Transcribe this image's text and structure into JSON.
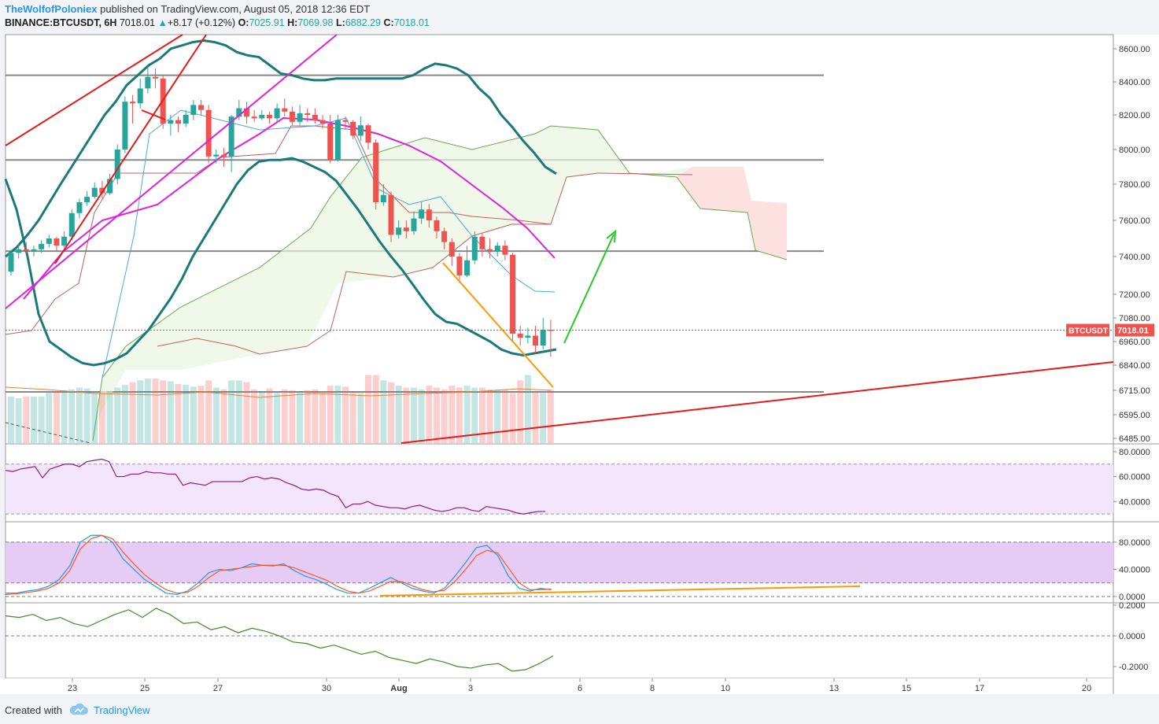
{
  "header": {
    "author": "TheWolfofPoloniex",
    "published_text": "published on TradingView.com, August 05, 2018 12:36 EDT",
    "symbol": "BINANCE:BTCUSDT, 6H",
    "last": "7018.01",
    "change_arrow": "▲",
    "change": "+8.17 (+0.12%)",
    "o_label": "O:",
    "o": "7025.91",
    "h_label": "H:",
    "h": "7069.98",
    "l_label": "L:",
    "l": "6882.29",
    "c_label": "C:",
    "c": "7018.01"
  },
  "footer": {
    "created_with": "Created with",
    "brand": "TradingView",
    "logo_icon": "tradingview-cloud-icon"
  },
  "colors": {
    "up": "#26a69a",
    "down": "#ef5350",
    "bb": "#1b7a78",
    "ma": "#e020e0",
    "trend_red": "#e41b1b",
    "orange": "#ff9800",
    "green_arrow": "#22cc22",
    "price_tag": "#ef5350",
    "rsi_line": "#8b1a8b",
    "stoch_k": "#2196f3",
    "stoch_d": "#ff5722",
    "osc_line": "#3f8c1f",
    "cloud_green": "#8bc34a",
    "cloud_red": "#f7a8a8"
  },
  "chart_data": [
    {
      "type": "candlestick",
      "title": "BINANCE:BTCUSDT, 6H",
      "x_axis_labels": [
        "23",
        "25",
        "27",
        "30",
        "Aug",
        "3",
        "6",
        "8",
        "10",
        "13",
        "15",
        "17",
        "20"
      ],
      "y_ticks": [
        "8600.00",
        "8400.00",
        "8200.00",
        "8000.00",
        "7800.00",
        "7600.00",
        "7400.00",
        "7200.00",
        "7080.00",
        "6960.00",
        "6840.00",
        "6715.00",
        "6595.00",
        "6485.00"
      ],
      "price_tag": {
        "symbol": "BTCUSDT",
        "value": "7018.01"
      },
      "candles": [
        [
          7320,
          7420,
          7300,
          7430
        ],
        [
          7420,
          7440,
          7390,
          7470
        ],
        [
          7440,
          7430,
          7420,
          7480
        ],
        [
          7430,
          7440,
          7400,
          7460
        ],
        [
          7440,
          7470,
          7420,
          7490
        ],
        [
          7470,
          7500,
          7450,
          7520
        ],
        [
          7500,
          7460,
          7430,
          7510
        ],
        [
          7460,
          7510,
          7450,
          7540
        ],
        [
          7510,
          7640,
          7490,
          7660
        ],
        [
          7640,
          7700,
          7610,
          7720
        ],
        [
          7700,
          7730,
          7680,
          7760
        ],
        [
          7730,
          7780,
          7720,
          7810
        ],
        [
          7780,
          7750,
          7720,
          7820
        ],
        [
          7750,
          7830,
          7740,
          7860
        ],
        [
          7830,
          8000,
          7800,
          8030
        ],
        [
          8000,
          8280,
          7980,
          8310
        ],
        [
          8280,
          8270,
          8150,
          8320
        ],
        [
          8270,
          8360,
          8240,
          8420
        ],
        [
          8360,
          8430,
          8330,
          8490
        ],
        [
          8430,
          8420,
          8360,
          8480
        ],
        [
          8420,
          8150,
          8120,
          8440
        ],
        [
          8150,
          8170,
          8080,
          8200
        ],
        [
          8170,
          8150,
          8100,
          8190
        ],
        [
          8150,
          8200,
          8130,
          8230
        ],
        [
          8200,
          8260,
          8170,
          8290
        ],
        [
          8260,
          8230,
          8200,
          8290
        ],
        [
          8230,
          7960,
          7920,
          8260
        ],
        [
          7960,
          7970,
          7920,
          8000
        ],
        [
          7970,
          7960,
          7900,
          8010
        ],
        [
          7960,
          8190,
          7870,
          8200
        ],
        [
          8190,
          8240,
          8170,
          8290
        ],
        [
          8240,
          8190,
          8150,
          8280
        ],
        [
          8190,
          8180,
          8160,
          8230
        ],
        [
          8180,
          8200,
          8170,
          8230
        ],
        [
          8200,
          8180,
          8150,
          8220
        ],
        [
          8180,
          8240,
          8160,
          8270
        ],
        [
          8240,
          8220,
          8190,
          8300
        ],
        [
          8220,
          8160,
          8140,
          8250
        ],
        [
          8160,
          8210,
          8140,
          8260
        ],
        [
          8210,
          8200,
          8160,
          8240
        ],
        [
          8200,
          8170,
          8150,
          8240
        ],
        [
          8170,
          8150,
          8120,
          8200
        ],
        [
          8150,
          7940,
          7920,
          8200
        ],
        [
          7940,
          8170,
          7930,
          8200
        ],
        [
          8170,
          8160,
          8120,
          8190
        ],
        [
          8160,
          8080,
          8060,
          8170
        ],
        [
          8080,
          8140,
          8050,
          8190
        ],
        [
          8140,
          8040,
          8000,
          8150
        ],
        [
          8040,
          7700,
          7660,
          8060
        ],
        [
          7700,
          7740,
          7680,
          7800
        ],
        [
          7740,
          7520,
          7480,
          7760
        ],
        [
          7520,
          7560,
          7500,
          7600
        ],
        [
          7560,
          7540,
          7500,
          7600
        ],
        [
          7540,
          7610,
          7520,
          7650
        ],
        [
          7610,
          7660,
          7580,
          7700
        ],
        [
          7660,
          7600,
          7560,
          7690
        ],
        [
          7600,
          7540,
          7500,
          7620
        ],
        [
          7540,
          7480,
          7440,
          7560
        ],
        [
          7480,
          7400,
          7350,
          7500
        ],
        [
          7400,
          7300,
          7260,
          7420
        ],
        [
          7300,
          7380,
          7290,
          7460
        ],
        [
          7380,
          7510,
          7360,
          7540
        ],
        [
          7510,
          7440,
          7400,
          7530
        ],
        [
          7440,
          7430,
          7390,
          7500
        ],
        [
          7430,
          7460,
          7400,
          7480
        ],
        [
          7460,
          7410,
          7380,
          7490
        ],
        [
          7410,
          7000,
          6960,
          7420
        ],
        [
          7000,
          6980,
          6940,
          7040
        ],
        [
          6980,
          6990,
          6950,
          7030
        ],
        [
          6990,
          6940,
          6900,
          7040
        ],
        [
          6940,
          7020,
          6920,
          7080
        ],
        [
          7020,
          7018,
          6882,
          7070
        ]
      ],
      "volume": [
        520,
        500,
        520,
        520,
        520,
        560,
        580,
        590,
        600,
        620,
        610,
        560,
        560,
        580,
        620,
        650,
        680,
        700,
        720,
        720,
        700,
        690,
        660,
        650,
        630,
        640,
        700,
        620,
        600,
        700,
        700,
        680,
        600,
        580,
        610,
        560,
        600,
        590,
        580,
        590,
        600,
        560,
        640,
        640,
        630,
        580,
        560,
        760,
        760,
        700,
        680,
        640,
        620,
        620,
        600,
        640,
        620,
        600,
        640,
        620,
        640,
        620,
        620,
        600,
        600,
        600,
        560,
        700,
        760,
        580,
        560,
        600
      ],
      "bollinger_upper": [
        7400,
        7450,
        7520,
        7600,
        7700,
        7800,
        7900,
        8000,
        8100,
        8200,
        8280,
        8380,
        8440,
        8500,
        8540,
        8600,
        8620,
        8640,
        8650,
        8640,
        8620,
        8580,
        8560,
        8550,
        8500,
        8450,
        8440,
        8420,
        8410,
        8410,
        8420,
        8420,
        8420,
        8420,
        8420,
        8420,
        8420,
        8440,
        8480,
        8510,
        8500,
        8480,
        8440,
        8360,
        8300,
        8200,
        8130,
        8050,
        7980,
        7900,
        7860
      ],
      "bollinger_lower": [
        7830,
        7660,
        7400,
        7100,
        6960,
        6920,
        6880,
        6850,
        6840,
        6850,
        6870,
        6900,
        6960,
        7020,
        7100,
        7180,
        7280,
        7400,
        7500,
        7600,
        7700,
        7800,
        7880,
        7930,
        7940,
        7940,
        7950,
        7930,
        7900,
        7870,
        7820,
        7740,
        7660,
        7570,
        7480,
        7400,
        7330,
        7250,
        7170,
        7100,
        7060,
        7050,
        7020,
        6990,
        6960,
        6920,
        6900,
        6890,
        6900,
        6910,
        6920
      ]
    },
    {
      "type": "line",
      "title": "RSI",
      "y_ticks": [
        "80.0000",
        "60.0000",
        "40.0000"
      ],
      "values": [
        65,
        64,
        66,
        67,
        68,
        59,
        66,
        68,
        70,
        70,
        68,
        72,
        73,
        74,
        72,
        60,
        60,
        62,
        62,
        64,
        63,
        63,
        62,
        62,
        53,
        55,
        54,
        53,
        56,
        56,
        56,
        56,
        56,
        59,
        60,
        58,
        59,
        58,
        55,
        53,
        50,
        49,
        50,
        49,
        46,
        44,
        35,
        38,
        38,
        40,
        37,
        36,
        35,
        35,
        34,
        36,
        37,
        35,
        33,
        32,
        33,
        35,
        35,
        33,
        32,
        36,
        35,
        34,
        33,
        31,
        30,
        31,
        32,
        32
      ]
    },
    {
      "type": "line",
      "title": "Stochastic RSI",
      "y_ticks": [
        "80.0000",
        "40.0000",
        "0.0000"
      ],
      "series": [
        {
          "values": [
            5,
            5,
            8,
            10,
            15,
            25,
            45,
            80,
            90,
            90,
            80,
            55,
            40,
            25,
            15,
            5,
            3,
            8,
            20,
            35,
            40,
            38,
            42,
            48,
            46,
            45,
            48,
            38,
            30,
            25,
            18,
            10,
            5,
            5,
            12,
            20,
            28,
            20,
            12,
            8,
            5,
            12,
            30,
            50,
            72,
            75,
            60,
            30,
            12,
            8,
            12,
            10
          ]
        },
        {
          "values": [
            3,
            4,
            6,
            8,
            12,
            20,
            38,
            70,
            85,
            90,
            85,
            65,
            48,
            32,
            20,
            10,
            5,
            6,
            15,
            28,
            38,
            40,
            42,
            44,
            46,
            46,
            46,
            42,
            36,
            30,
            24,
            15,
            8,
            5,
            8,
            15,
            22,
            22,
            16,
            10,
            7,
            9,
            22,
            40,
            60,
            68,
            64,
            42,
            20,
            10,
            10,
            11
          ]
        }
      ]
    },
    {
      "type": "line",
      "title": "Oscillator",
      "y_ticks": [
        "0.2000",
        "0.0000",
        "-0.2000"
      ],
      "values": [
        0.13,
        0.12,
        0.14,
        0.1,
        0.12,
        0.08,
        0.06,
        0.1,
        0.14,
        0.17,
        0.12,
        0.18,
        0.14,
        0.08,
        0.09,
        0.04,
        0.06,
        0.02,
        0.05,
        0.03,
        0.0,
        -0.04,
        -0.05,
        -0.08,
        -0.06,
        -0.09,
        -0.12,
        -0.1,
        -0.14,
        -0.16,
        -0.18,
        -0.15,
        -0.17,
        -0.2,
        -0.21,
        -0.19,
        -0.18,
        -0.23,
        -0.22,
        -0.18,
        -0.13
      ]
    }
  ]
}
